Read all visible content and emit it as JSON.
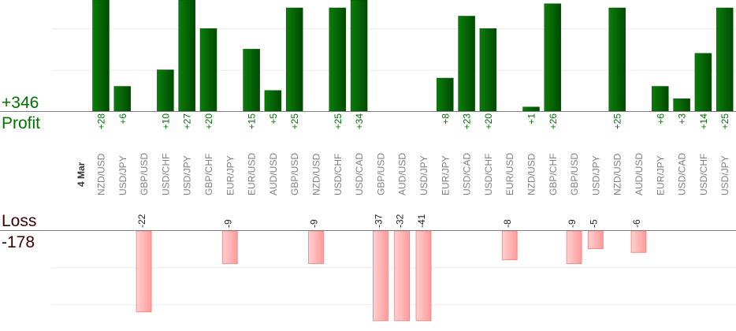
{
  "summary": {
    "profit_total": "+346",
    "profit_label": "Profit",
    "loss_label": "Loss",
    "loss_total": "-178",
    "date_label": "4 Mar"
  },
  "colors": {
    "profit_text": "#007000",
    "loss_text": "#3a0000",
    "profit_bar_light": "#0b7d0b",
    "profit_bar_dark": "#004a00",
    "loss_bar_light": "#ffd0d0",
    "loss_bar_dark": "#ff9a9a",
    "loss_bar_border": "#f08080",
    "pair_text": "#808080"
  },
  "chart_data": {
    "type": "bar",
    "title": "",
    "categories": [
      "NZD/USD",
      "USD/JPY",
      "GBP/USD",
      "USD/CHF",
      "USD/JPY",
      "GBP/CHF",
      "EUR/JPY",
      "EUR/USD",
      "AUD/USD",
      "GBP/USD",
      "NZD/USD",
      "USD/CHF",
      "USD/CAD",
      "GBP/USD",
      "AUD/USD",
      "USD/JPY",
      "EUR/JPY",
      "USD/CAD",
      "USD/CHF",
      "EUR/USD",
      "NZD/USD",
      "GBP/CHF",
      "GBP/USD",
      "USD/JPY",
      "NZD/USD",
      "AUD/USD",
      "EUR/JPY",
      "USD/CAD",
      "USD/CHF",
      "USD/JPY"
    ],
    "values": [
      28,
      6,
      -22,
      10,
      27,
      20,
      -9,
      15,
      5,
      25,
      -9,
      25,
      34,
      -37,
      -32,
      -41,
      8,
      23,
      20,
      -8,
      1,
      26,
      -9,
      -5,
      25,
      -6,
      6,
      3,
      14,
      25
    ],
    "profit_ylim": [
      0,
      27
    ],
    "loss_ylim": [
      -24.5,
      0
    ],
    "grid_step": 10,
    "grid": true
  }
}
